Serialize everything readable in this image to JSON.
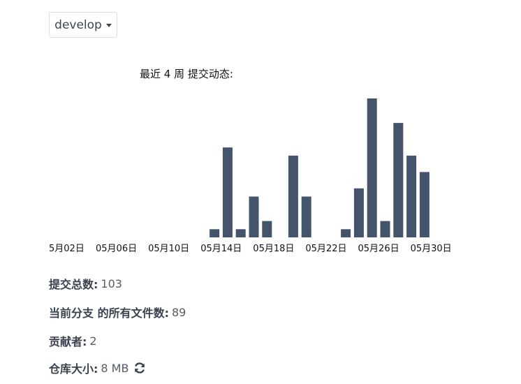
{
  "branch_selector": {
    "label": "develop",
    "caret_icon": "caret-down-icon"
  },
  "chart_title": "最近 4 周 提交动态:",
  "chart_data": {
    "type": "bar",
    "title": "最近 4 周 提交动态:",
    "bar_color": "#44546a",
    "x_tick_labels": [
      "5月02日",
      "05月06日",
      "05月10日",
      "05月14日",
      "05月18日",
      "05月22日",
      "05月26日",
      "05月30日"
    ],
    "x": [
      "05-02",
      "05-03",
      "05-04",
      "05-05",
      "05-06",
      "05-07",
      "05-08",
      "05-09",
      "05-10",
      "05-11",
      "05-12",
      "05-13",
      "05-14",
      "05-15",
      "05-16",
      "05-17",
      "05-18",
      "05-19",
      "05-20",
      "05-21",
      "05-22",
      "05-23",
      "05-24",
      "05-25",
      "05-26",
      "05-27",
      "05-28",
      "05-29",
      "05-30",
      "05-31"
    ],
    "values": [
      0,
      0,
      0,
      0,
      0,
      0,
      0,
      0,
      0,
      0,
      0,
      0,
      1,
      11,
      1,
      5,
      2,
      0,
      10,
      5,
      0,
      0,
      1,
      6,
      17,
      2,
      14,
      10,
      8,
      0
    ],
    "ylim": [
      0,
      17
    ],
    "grid": false,
    "legend": "none"
  },
  "stats": {
    "commits": {
      "label": "提交总数:",
      "value": "103"
    },
    "files": {
      "label": "当前分支 的所有文件数:",
      "value": "89"
    },
    "contributors": {
      "label": "贡献者:",
      "value": "2"
    },
    "repo_size": {
      "label": "仓库大小:",
      "value": "8 MB",
      "icon": "refresh-icon"
    }
  }
}
